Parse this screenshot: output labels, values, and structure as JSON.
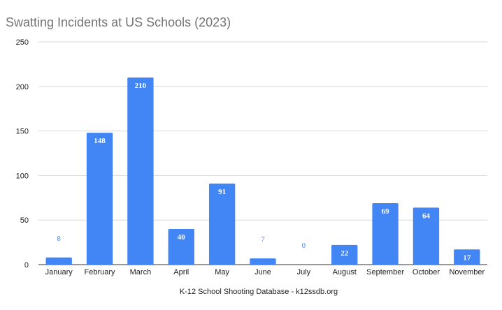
{
  "chart_data": {
    "type": "bar",
    "title": "Swatting Incidents at US Schools (2023)",
    "xlabel": "K-12 School Shooting Database - k12ssdb.org",
    "ylabel": "",
    "categories": [
      "January",
      "February",
      "March",
      "April",
      "May",
      "June",
      "July",
      "August",
      "September",
      "October",
      "November"
    ],
    "values": [
      8,
      148,
      210,
      40,
      91,
      7,
      0,
      22,
      69,
      64,
      17
    ],
    "ylim": [
      0,
      250
    ],
    "yticks": [
      0,
      50,
      100,
      150,
      200,
      250
    ],
    "grid": true,
    "legend": "none",
    "colors": {
      "bar": "#4285f4",
      "grid": "#d9d9d9",
      "title": "#757575"
    }
  }
}
